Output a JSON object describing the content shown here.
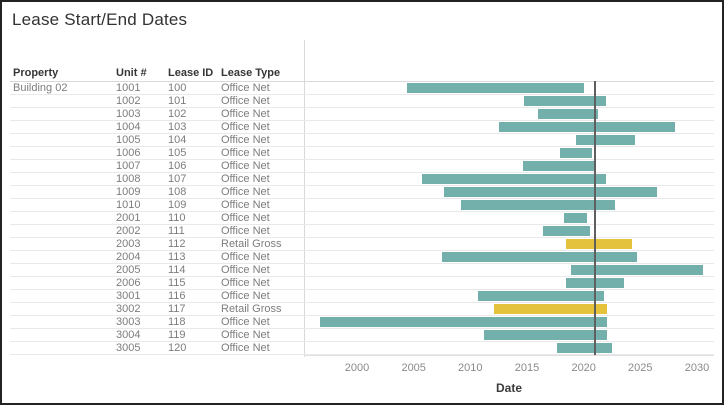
{
  "window": {
    "title": "Lease Start/End Dates"
  },
  "table": {
    "headers": {
      "property": "Property",
      "unit": "Unit #",
      "lease_id": "Lease ID",
      "lease_type": "Lease Type"
    },
    "property_label": "Building 02"
  },
  "chart_data": {
    "type": "bar",
    "subtype": "gantt",
    "title": "Lease Start/End Dates",
    "xlabel": "Date",
    "x_ticks": [
      2000,
      2005,
      2010,
      2015,
      2020,
      2025,
      2030
    ],
    "x_range": [
      1995.3,
      2031.5
    ],
    "grid": "horizontal-row-separators-only",
    "reference_line_year": 2021,
    "colors": {
      "teal": "#74b0ab",
      "gold": "#e5c23c",
      "reference_line": "#5f5f5f"
    },
    "rows": [
      {
        "unit": "1001",
        "lease_id": "100",
        "lease_type": "Office Net",
        "start": 2004.4,
        "end": 2020.0,
        "color": "teal"
      },
      {
        "unit": "1002",
        "lease_id": "101",
        "lease_type": "Office Net",
        "start": 2014.7,
        "end": 2022.0,
        "color": "teal"
      },
      {
        "unit": "1003",
        "lease_id": "102",
        "lease_type": "Office Net",
        "start": 2016.0,
        "end": 2021.3,
        "color": "teal"
      },
      {
        "unit": "1004",
        "lease_id": "103",
        "lease_type": "Office Net",
        "start": 2012.5,
        "end": 2028.1,
        "color": "teal"
      },
      {
        "unit": "1005",
        "lease_id": "104",
        "lease_type": "Office Net",
        "start": 2019.3,
        "end": 2024.5,
        "color": "teal"
      },
      {
        "unit": "1006",
        "lease_id": "105",
        "lease_type": "Office Net",
        "start": 2017.9,
        "end": 2020.7,
        "color": "teal"
      },
      {
        "unit": "1007",
        "lease_id": "106",
        "lease_type": "Office Net",
        "start": 2014.6,
        "end": 2021.0,
        "color": "teal"
      },
      {
        "unit": "1008",
        "lease_id": "107",
        "lease_type": "Office Net",
        "start": 2005.7,
        "end": 2022.0,
        "color": "teal"
      },
      {
        "unit": "1009",
        "lease_id": "108",
        "lease_type": "Office Net",
        "start": 2007.7,
        "end": 2026.5,
        "color": "teal"
      },
      {
        "unit": "1010",
        "lease_id": "109",
        "lease_type": "Office Net",
        "start": 2009.2,
        "end": 2022.8,
        "color": "teal"
      },
      {
        "unit": "2001",
        "lease_id": "110",
        "lease_type": "Office Net",
        "start": 2018.3,
        "end": 2020.3,
        "color": "teal"
      },
      {
        "unit": "2002",
        "lease_id": "111",
        "lease_type": "Office Net",
        "start": 2016.4,
        "end": 2020.6,
        "color": "teal"
      },
      {
        "unit": "2003",
        "lease_id": "112",
        "lease_type": "Retail Gross",
        "start": 2018.4,
        "end": 2024.3,
        "color": "gold"
      },
      {
        "unit": "2004",
        "lease_id": "113",
        "lease_type": "Office Net",
        "start": 2007.5,
        "end": 2024.7,
        "color": "teal"
      },
      {
        "unit": "2005",
        "lease_id": "114",
        "lease_type": "Office Net",
        "start": 2018.9,
        "end": 2030.5,
        "color": "teal"
      },
      {
        "unit": "2006",
        "lease_id": "115",
        "lease_type": "Office Net",
        "start": 2018.4,
        "end": 2023.6,
        "color": "teal"
      },
      {
        "unit": "3001",
        "lease_id": "116",
        "lease_type": "Office Net",
        "start": 2010.7,
        "end": 2021.8,
        "color": "teal"
      },
      {
        "unit": "3002",
        "lease_id": "117",
        "lease_type": "Retail Gross",
        "start": 2012.1,
        "end": 2022.1,
        "color": "gold"
      },
      {
        "unit": "3003",
        "lease_id": "118",
        "lease_type": "Office Net",
        "start": 1996.7,
        "end": 2022.1,
        "color": "teal"
      },
      {
        "unit": "3004",
        "lease_id": "119",
        "lease_type": "Office Net",
        "start": 2011.2,
        "end": 2022.1,
        "color": "teal"
      },
      {
        "unit": "3005",
        "lease_id": "120",
        "lease_type": "Office Net",
        "start": 2017.6,
        "end": 2022.5,
        "color": "teal"
      }
    ]
  }
}
